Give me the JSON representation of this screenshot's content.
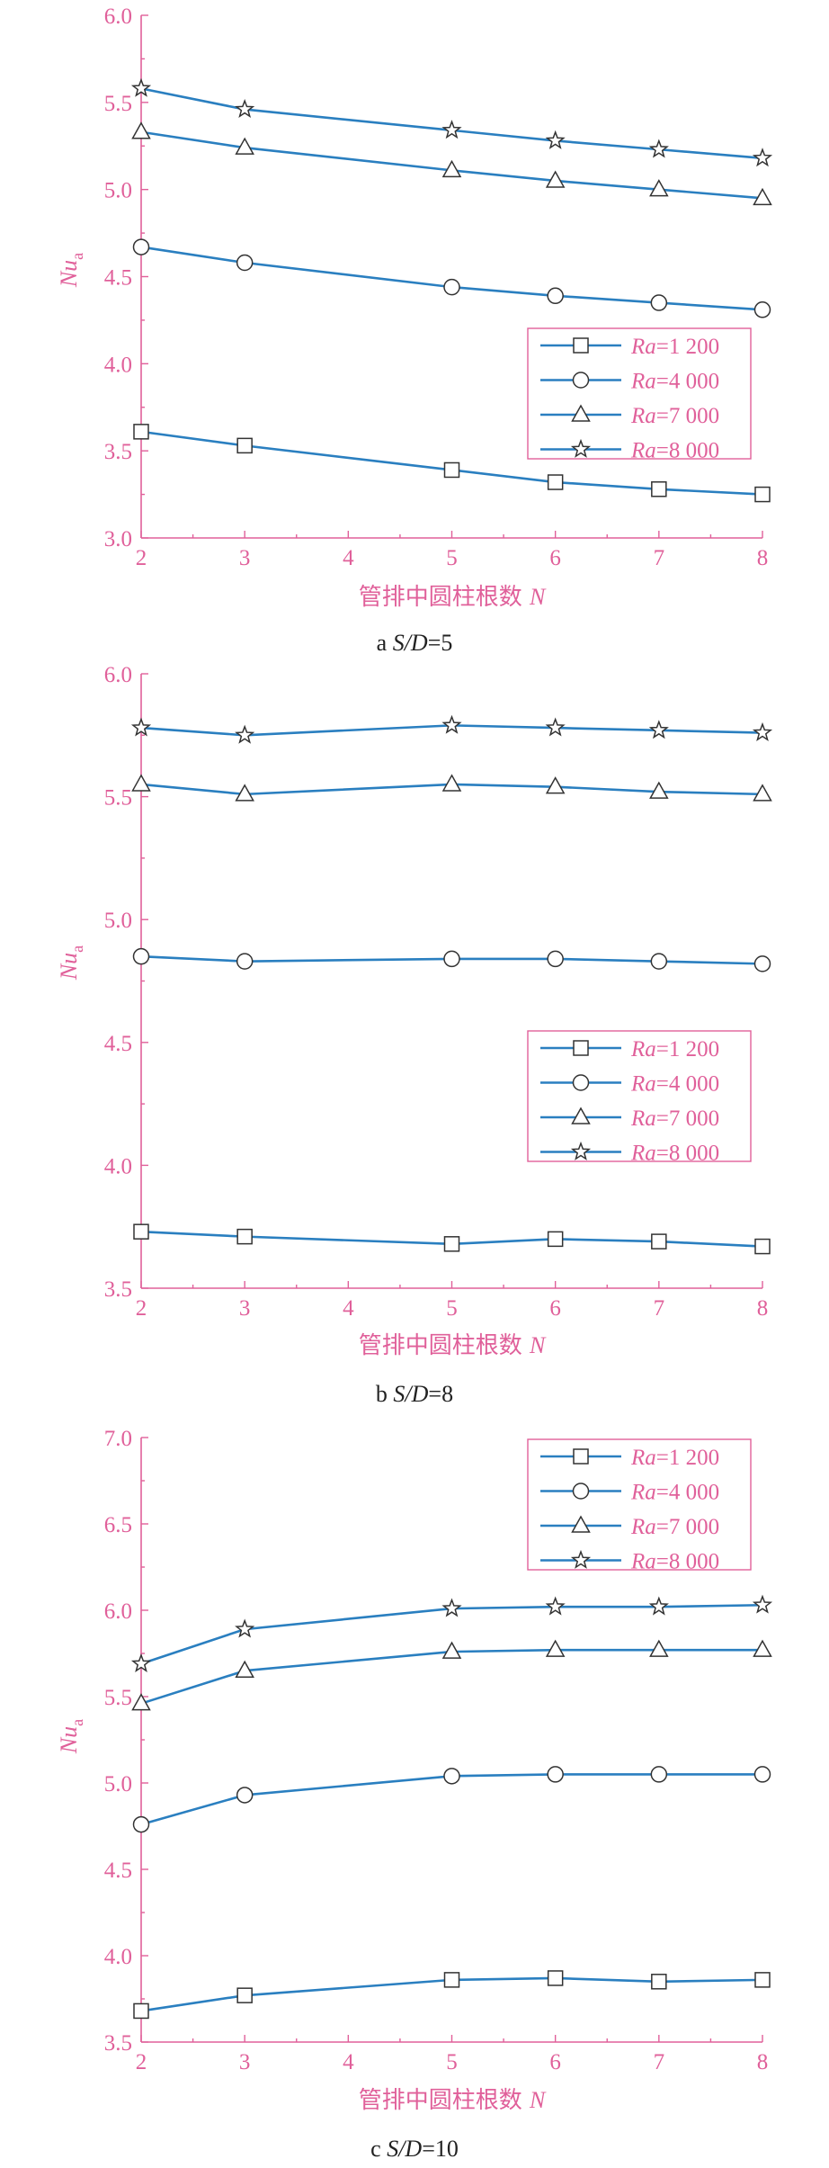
{
  "colors": {
    "axis": "#e0609a",
    "series_line": "#2a7fc0",
    "marker_edge": "#333333",
    "caption": "#222222"
  },
  "chart_data": [
    {
      "type": "line",
      "caption": "a  S/D=5",
      "caption_parts": {
        "letter": "a",
        "label": "S/D",
        "value": "=5"
      },
      "xlabel": "管排中圆柱根数 N",
      "xlabel_parts": {
        "text": "管排中圆柱根数",
        "symbol": "N"
      },
      "ylabel": "Nua",
      "ylabel_parts": {
        "symbol": "Nu",
        "subscript": "a"
      },
      "x": [
        2,
        3,
        5,
        6,
        7,
        8
      ],
      "xlim": [
        2,
        8
      ],
      "xticks": [
        2,
        3,
        4,
        5,
        6,
        7,
        8
      ],
      "ylim": [
        3.0,
        6.0
      ],
      "yticks": [
        3.0,
        3.5,
        4.0,
        4.5,
        5.0,
        5.5,
        6.0
      ],
      "ytick_labels": [
        "3.0",
        "3.5",
        "4.0",
        "4.5",
        "5.0",
        "5.5",
        "6.0"
      ],
      "grid": false,
      "legend_position": "right-middle",
      "series": [
        {
          "name": "Ra=1 200",
          "name_parts": {
            "symbol": "Ra",
            "value": "=1 200"
          },
          "marker": "square",
          "values": [
            3.61,
            3.53,
            3.39,
            3.32,
            3.28,
            3.25
          ]
        },
        {
          "name": "Ra=4 000",
          "name_parts": {
            "symbol": "Ra",
            "value": "=4 000"
          },
          "marker": "circle",
          "values": [
            4.67,
            4.58,
            4.44,
            4.39,
            4.35,
            4.31
          ]
        },
        {
          "name": "Ra=7 000",
          "name_parts": {
            "symbol": "Ra",
            "value": "=7 000"
          },
          "marker": "triangle",
          "values": [
            5.33,
            5.24,
            5.11,
            5.05,
            5.0,
            4.95
          ]
        },
        {
          "name": "Ra=8 000",
          "name_parts": {
            "symbol": "Ra",
            "value": "=8 000"
          },
          "marker": "star",
          "values": [
            5.58,
            5.46,
            5.34,
            5.28,
            5.23,
            5.18
          ]
        }
      ]
    },
    {
      "type": "line",
      "caption": "b  S/D=8",
      "caption_parts": {
        "letter": "b",
        "label": "S/D",
        "value": "=8"
      },
      "xlabel": "管排中圆柱根数 N",
      "xlabel_parts": {
        "text": "管排中圆柱根数",
        "symbol": "N"
      },
      "ylabel": "Nua",
      "ylabel_parts": {
        "symbol": "Nu",
        "subscript": "a"
      },
      "x": [
        2,
        3,
        5,
        6,
        7,
        8
      ],
      "xlim": [
        2,
        8
      ],
      "xticks": [
        2,
        3,
        4,
        5,
        6,
        7,
        8
      ],
      "ylim": [
        3.5,
        6.0
      ],
      "yticks": [
        3.5,
        4.0,
        4.5,
        5.0,
        5.5,
        6.0
      ],
      "ytick_labels": [
        "3.5",
        "4.0",
        "4.5",
        "5.0",
        "5.5",
        "6.0"
      ],
      "grid": false,
      "legend_position": "right-lower-middle",
      "series": [
        {
          "name": "Ra=1 200",
          "name_parts": {
            "symbol": "Ra",
            "value": "=1 200"
          },
          "marker": "square",
          "values": [
            3.73,
            3.71,
            3.68,
            3.7,
            3.69,
            3.67
          ]
        },
        {
          "name": "Ra=4 000",
          "name_parts": {
            "symbol": "Ra",
            "value": "=4 000"
          },
          "marker": "circle",
          "values": [
            4.85,
            4.83,
            4.84,
            4.84,
            4.83,
            4.82
          ]
        },
        {
          "name": "Ra=7 000",
          "name_parts": {
            "symbol": "Ra",
            "value": "=7 000"
          },
          "marker": "triangle",
          "values": [
            5.55,
            5.51,
            5.55,
            5.54,
            5.52,
            5.51
          ]
        },
        {
          "name": "Ra=8 000",
          "name_parts": {
            "symbol": "Ra",
            "value": "=8 000"
          },
          "marker": "star",
          "values": [
            5.78,
            5.75,
            5.79,
            5.78,
            5.77,
            5.76
          ]
        }
      ]
    },
    {
      "type": "line",
      "caption": "c  S/D=10",
      "caption_parts": {
        "letter": "c",
        "label": "S/D",
        "value": "=10"
      },
      "xlabel": "管排中圆柱根数 N",
      "xlabel_parts": {
        "text": "管排中圆柱根数",
        "symbol": "N"
      },
      "ylabel": "Nua",
      "ylabel_parts": {
        "symbol": "Nu",
        "subscript": "a"
      },
      "x": [
        2,
        3,
        5,
        6,
        7,
        8
      ],
      "xlim": [
        2,
        8
      ],
      "xticks": [
        2,
        3,
        4,
        5,
        6,
        7,
        8
      ],
      "ylim": [
        3.5,
        7.0
      ],
      "yticks": [
        3.5,
        4.0,
        4.5,
        5.0,
        5.5,
        6.0,
        6.5,
        7.0
      ],
      "ytick_labels": [
        "3.5",
        "4.0",
        "4.5",
        "5.0",
        "5.5",
        "6.0",
        "6.5",
        "7.0"
      ],
      "grid": false,
      "legend_position": "top-right",
      "series": [
        {
          "name": "Ra=1 200",
          "name_parts": {
            "symbol": "Ra",
            "value": "=1 200"
          },
          "marker": "square",
          "values": [
            3.68,
            3.77,
            3.86,
            3.87,
            3.85,
            3.86
          ]
        },
        {
          "name": "Ra=4 000",
          "name_parts": {
            "symbol": "Ra",
            "value": "=4 000"
          },
          "marker": "circle",
          "values": [
            4.76,
            4.93,
            5.04,
            5.05,
            5.05,
            5.05
          ]
        },
        {
          "name": "Ra=7 000",
          "name_parts": {
            "symbol": "Ra",
            "value": "=7 000"
          },
          "marker": "triangle",
          "values": [
            5.46,
            5.65,
            5.76,
            5.77,
            5.77,
            5.77
          ]
        },
        {
          "name": "Ra=8 000",
          "name_parts": {
            "symbol": "Ra",
            "value": "=8 000"
          },
          "marker": "star",
          "values": [
            5.69,
            5.89,
            6.01,
            6.02,
            6.02,
            6.03
          ]
        }
      ]
    }
  ]
}
